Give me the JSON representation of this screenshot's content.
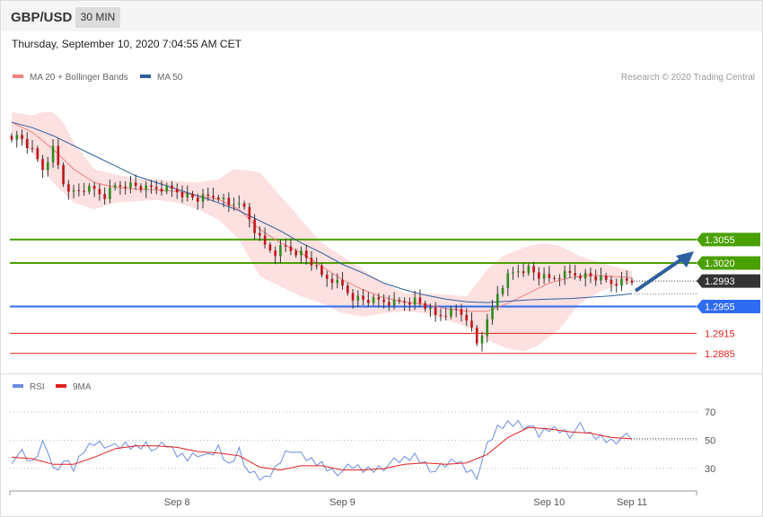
{
  "header": {
    "symbol": "GBP/USD",
    "timeframe": "30 MIN"
  },
  "timestamp": "Thursday, September 10, 2020 7:04:55 AM CET",
  "legend": {
    "ma20_label": "MA 20 + Bollinger Bands",
    "ma50_label": "MA 50",
    "credit": "Research © 2020 Trading Central"
  },
  "rsi_legend": {
    "rsi_label": "RSI",
    "ma9_label": "9MA"
  },
  "colors": {
    "ma20": "#f08080",
    "ma50": "#2d5f9e",
    "bands": "#fde0e0",
    "bull": "#2e8b1e",
    "bear": "#c0141c",
    "resistance": "#4aa000",
    "pivot": "#2e6bf0",
    "support": "#e0201c",
    "rsi": "#6b8de0",
    "rsi_ma": "#e0201c"
  },
  "chart_data": [
    {
      "type": "candlestick",
      "title": "GBP/USD",
      "interval": "30 MIN",
      "x_ticks": [
        "Sep 8",
        "Sep 9",
        "Sep 10",
        "Sep 11"
      ],
      "ylim": [
        1.287,
        1.3245
      ],
      "levels": [
        {
          "value": "1.3055",
          "role": "resistance"
        },
        {
          "value": "1.3020",
          "role": "resistance"
        },
        {
          "value": "1.2993",
          "role": "last"
        },
        {
          "value": "1.2955",
          "role": "pivot"
        },
        {
          "value": "1.2915",
          "role": "support"
        },
        {
          "value": "1.2885",
          "role": "support"
        }
      ],
      "series": [
        {
          "name": "MA 20 + Bollinger Bands"
        },
        {
          "name": "MA 50"
        }
      ],
      "close_path": [
        [
          0,
          1.321
        ],
        [
          4,
          1.3205
        ],
        [
          8,
          1.3185
        ],
        [
          12,
          1.316
        ],
        [
          14,
          1.3175
        ],
        [
          16,
          1.319
        ],
        [
          20,
          1.314
        ],
        [
          24,
          1.3125
        ],
        [
          28,
          1.313
        ],
        [
          32,
          1.3128
        ],
        [
          36,
          1.312
        ],
        [
          40,
          1.3135
        ],
        [
          44,
          1.3138
        ],
        [
          48,
          1.3135
        ],
        [
          52,
          1.313
        ],
        [
          56,
          1.3132
        ],
        [
          60,
          1.3131
        ],
        [
          64,
          1.3128
        ],
        [
          68,
          1.312
        ],
        [
          72,
          1.3115
        ],
        [
          76,
          1.3118
        ],
        [
          80,
          1.312
        ],
        [
          84,
          1.3105
        ],
        [
          88,
          1.3115
        ],
        [
          92,
          1.3085
        ],
        [
          95,
          1.306
        ],
        [
          98,
          1.3045
        ],
        [
          102,
          1.3035
        ],
        [
          105,
          1.3045
        ],
        [
          108,
          1.304
        ],
        [
          112,
          1.3035
        ],
        [
          116,
          1.302
        ],
        [
          120,
          1.3
        ],
        [
          124,
          1.2995
        ],
        [
          128,
          1.2985
        ],
        [
          132,
          1.297
        ],
        [
          136,
          1.2965
        ],
        [
          140,
          1.2963
        ],
        [
          144,
          1.2963
        ],
        [
          148,
          1.296
        ],
        [
          152,
          1.2963
        ],
        [
          156,
          1.2965
        ],
        [
          160,
          1.2955
        ],
        [
          164,
          1.294
        ],
        [
          168,
          1.2945
        ],
        [
          172,
          1.295
        ],
        [
          176,
          1.294
        ],
        [
          180,
          1.29
        ],
        [
          184,
          1.293
        ],
        [
          188,
          1.2975
        ],
        [
          192,
          1.3
        ],
        [
          196,
          1.301
        ],
        [
          200,
          1.3012
        ],
        [
          204,
          1.3
        ],
        [
          208,
          1.2995
        ],
        [
          212,
          1.3002
        ],
        [
          216,
          1.3004
        ],
        [
          220,
          1.3003
        ],
        [
          224,
          1.3
        ],
        [
          228,
          1.2995
        ],
        [
          232,
          1.299
        ],
        [
          236,
          1.2992
        ],
        [
          240,
          1.2993
        ]
      ],
      "ma20_path": [
        [
          0,
          1.323
        ],
        [
          8,
          1.3215
        ],
        [
          16,
          1.319
        ],
        [
          24,
          1.316
        ],
        [
          32,
          1.314
        ],
        [
          40,
          1.3133
        ],
        [
          48,
          1.313
        ],
        [
          56,
          1.3129
        ],
        [
          64,
          1.3127
        ],
        [
          72,
          1.312
        ],
        [
          80,
          1.3115
        ],
        [
          88,
          1.31
        ],
        [
          96,
          1.307
        ],
        [
          104,
          1.305
        ],
        [
          112,
          1.3035
        ],
        [
          120,
          1.3015
        ],
        [
          128,
          1.2995
        ],
        [
          136,
          1.298
        ],
        [
          144,
          1.2968
        ],
        [
          152,
          1.2962
        ],
        [
          160,
          1.2958
        ],
        [
          168,
          1.2952
        ],
        [
          176,
          1.2948
        ],
        [
          184,
          1.2948
        ],
        [
          192,
          1.296
        ],
        [
          200,
          1.2975
        ],
        [
          208,
          1.299
        ],
        [
          216,
          1.2998
        ],
        [
          224,
          1.3002
        ],
        [
          232,
          1.3
        ],
        [
          240,
          1.2998
        ]
      ],
      "ma50_path": [
        [
          0,
          1.323
        ],
        [
          8,
          1.3222
        ],
        [
          16,
          1.321
        ],
        [
          24,
          1.3195
        ],
        [
          32,
          1.318
        ],
        [
          40,
          1.3165
        ],
        [
          48,
          1.315
        ],
        [
          56,
          1.314
        ],
        [
          64,
          1.313
        ],
        [
          72,
          1.312
        ],
        [
          80,
          1.311
        ],
        [
          88,
          1.3098
        ],
        [
          96,
          1.3083
        ],
        [
          104,
          1.3068
        ],
        [
          112,
          1.305
        ],
        [
          120,
          1.3035
        ],
        [
          128,
          1.3018
        ],
        [
          136,
          1.3005
        ],
        [
          144,
          1.299
        ],
        [
          152,
          1.298
        ],
        [
          160,
          1.2972
        ],
        [
          168,
          1.2966
        ],
        [
          176,
          1.2962
        ],
        [
          184,
          1.2961
        ],
        [
          192,
          1.2963
        ],
        [
          200,
          1.2965
        ],
        [
          208,
          1.2966
        ],
        [
          216,
          1.2967
        ],
        [
          224,
          1.2969
        ],
        [
          232,
          1.2971
        ],
        [
          240,
          1.2974
        ]
      ],
      "bands_upper": [
        [
          0,
          1.3245
        ],
        [
          8,
          1.324
        ],
        [
          12,
          1.3245
        ],
        [
          16,
          1.3245
        ],
        [
          20,
          1.323
        ],
        [
          24,
          1.32
        ],
        [
          32,
          1.316
        ],
        [
          40,
          1.3152
        ],
        [
          48,
          1.3146
        ],
        [
          56,
          1.3145
        ],
        [
          64,
          1.3142
        ],
        [
          72,
          1.314
        ],
        [
          80,
          1.3145
        ],
        [
          86,
          1.316
        ],
        [
          92,
          1.3158
        ],
        [
          96,
          1.3155
        ],
        [
          104,
          1.312
        ],
        [
          112,
          1.3085
        ],
        [
          120,
          1.305
        ],
        [
          128,
          1.303
        ],
        [
          136,
          1.301
        ],
        [
          144,
          1.299
        ],
        [
          152,
          1.2975
        ],
        [
          160,
          1.2975
        ],
        [
          168,
          1.2973
        ],
        [
          176,
          1.297
        ],
        [
          184,
          1.301
        ],
        [
          190,
          1.303
        ],
        [
          196,
          1.304
        ],
        [
          200,
          1.3045
        ],
        [
          206,
          1.305
        ],
        [
          212,
          1.3045
        ],
        [
          220,
          1.303
        ],
        [
          228,
          1.302
        ],
        [
          236,
          1.3012
        ],
        [
          240,
          1.3008
        ]
      ],
      "bands_lower": [
        [
          0,
          1.3215
        ],
        [
          8,
          1.3185
        ],
        [
          16,
          1.314
        ],
        [
          24,
          1.311
        ],
        [
          32,
          1.31
        ],
        [
          40,
          1.311
        ],
        [
          48,
          1.3112
        ],
        [
          56,
          1.3114
        ],
        [
          64,
          1.311
        ],
        [
          72,
          1.31
        ],
        [
          80,
          1.3085
        ],
        [
          88,
          1.3055
        ],
        [
          96,
          1.3
        ],
        [
          104,
          1.2985
        ],
        [
          112,
          1.297
        ],
        [
          120,
          1.296
        ],
        [
          128,
          1.2945
        ],
        [
          136,
          1.294
        ],
        [
          144,
          1.2945
        ],
        [
          152,
          1.2948
        ],
        [
          160,
          1.2945
        ],
        [
          168,
          1.2935
        ],
        [
          176,
          1.2925
        ],
        [
          184,
          1.2905
        ],
        [
          192,
          1.2892
        ],
        [
          198,
          1.2888
        ],
        [
          204,
          1.2898
        ],
        [
          212,
          1.2922
        ],
        [
          220,
          1.296
        ],
        [
          228,
          1.2978
        ],
        [
          236,
          1.2988
        ],
        [
          240,
          1.299
        ]
      ]
    },
    {
      "type": "line",
      "title": "RSI",
      "x_ticks": [
        "Sep 8",
        "Sep 9",
        "Sep 10",
        "Sep 11"
      ],
      "y_ticks": [
        "70",
        "50",
        "30"
      ],
      "ylim": [
        13,
        81
      ],
      "series": [
        {
          "name": "RSI",
          "values": [
            [
              0,
              37
            ],
            [
              4,
              40
            ],
            [
              8,
              33
            ],
            [
              12,
              48
            ],
            [
              14,
              44
            ],
            [
              16,
              30
            ],
            [
              20,
              35
            ],
            [
              24,
              29
            ],
            [
              28,
              43
            ],
            [
              32,
              49
            ],
            [
              36,
              48
            ],
            [
              40,
              44
            ],
            [
              44,
              46
            ],
            [
              48,
              45
            ],
            [
              52,
              48
            ],
            [
              56,
              44
            ],
            [
              60,
              46
            ],
            [
              64,
              40
            ],
            [
              68,
              38
            ],
            [
              72,
              42
            ],
            [
              76,
              37
            ],
            [
              80,
              44
            ],
            [
              84,
              32
            ],
            [
              88,
              44
            ],
            [
              92,
              27
            ],
            [
              95,
              23
            ],
            [
              98,
              22
            ],
            [
              102,
              30
            ],
            [
              105,
              40
            ],
            [
              108,
              45
            ],
            [
              112,
              38
            ],
            [
              116,
              35
            ],
            [
              120,
              33
            ],
            [
              124,
              29
            ],
            [
              128,
              28
            ],
            [
              132,
              31
            ],
            [
              136,
              29
            ],
            [
              140,
              30
            ],
            [
              144,
              32
            ],
            [
              148,
              34
            ],
            [
              152,
              36
            ],
            [
              156,
              39
            ],
            [
              160,
              34
            ],
            [
              164,
              28
            ],
            [
              168,
              32
            ],
            [
              172,
              36
            ],
            [
              176,
              30
            ],
            [
              180,
              26
            ],
            [
              184,
              45
            ],
            [
              188,
              58
            ],
            [
              192,
              62
            ],
            [
              196,
              63
            ],
            [
              200,
              60
            ],
            [
              204,
              53
            ],
            [
              208,
              58
            ],
            [
              212,
              58
            ],
            [
              216,
              55
            ],
            [
              220,
              59
            ],
            [
              224,
              53
            ],
            [
              228,
              52
            ],
            [
              232,
              50
            ],
            [
              236,
              52
            ],
            [
              240,
              51
            ]
          ]
        },
        {
          "name": "9MA",
          "values": [
            [
              0,
              38
            ],
            [
              8,
              37
            ],
            [
              16,
              33
            ],
            [
              24,
              33
            ],
            [
              32,
              38
            ],
            [
              40,
              44
            ],
            [
              48,
              46
            ],
            [
              56,
              46
            ],
            [
              64,
              45
            ],
            [
              72,
              42
            ],
            [
              80,
              41
            ],
            [
              88,
              39
            ],
            [
              96,
              31
            ],
            [
              104,
              29
            ],
            [
              112,
              32
            ],
            [
              120,
              32
            ],
            [
              128,
              29
            ],
            [
              136,
              29
            ],
            [
              144,
              30
            ],
            [
              152,
              33
            ],
            [
              160,
              34
            ],
            [
              168,
              33
            ],
            [
              176,
              34
            ],
            [
              184,
              40
            ],
            [
              192,
              52
            ],
            [
              200,
              59
            ],
            [
              208,
              58
            ],
            [
              216,
              56
            ],
            [
              224,
              55
            ],
            [
              232,
              52
            ],
            [
              240,
              51
            ]
          ]
        }
      ]
    }
  ]
}
